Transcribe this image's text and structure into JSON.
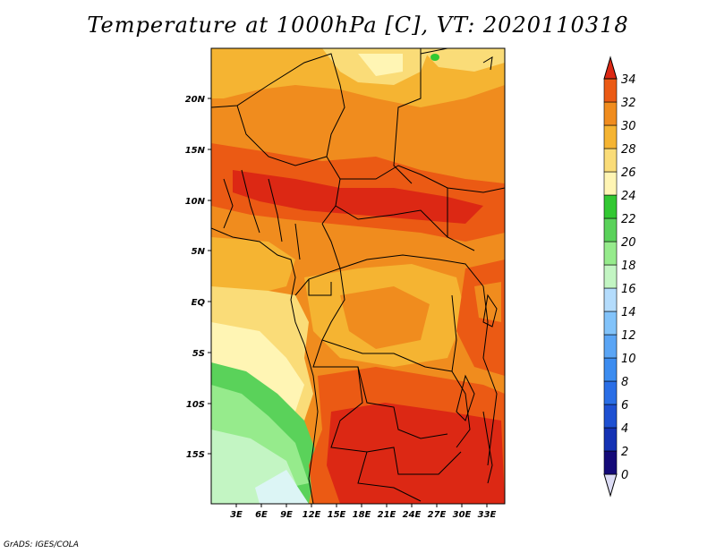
{
  "title": "Temperature at 1000hPa [C], VT: 2020110318",
  "credit": "GrADS: IGES/COLA",
  "map": {
    "lon_ticks": [
      "3E",
      "6E",
      "9E",
      "12E",
      "15E",
      "18E",
      "21E",
      "24E",
      "27E",
      "30E",
      "33E"
    ],
    "lat_ticks": [
      "20N",
      "15N",
      "10N",
      "5N",
      "EQ",
      "5S",
      "10S",
      "15S"
    ]
  },
  "colorbar": {
    "levels": [
      "0",
      "2",
      "4",
      "6",
      "8",
      "10",
      "12",
      "14",
      "16",
      "18",
      "20",
      "22",
      "24",
      "26",
      "28",
      "30",
      "32",
      "34"
    ],
    "colors": [
      "#140a78",
      "#1432b4",
      "#1e50d2",
      "#2a6ee6",
      "#3c8cf0",
      "#5aa5f5",
      "#82c3fa",
      "#b4dcfc",
      "#c3f5c3",
      "#96eb8c",
      "#5ad25a",
      "#32c832",
      "#fff5b4",
      "#fadc78",
      "#f5b432",
      "#f08c1e",
      "#eb5a14",
      "#dc2814"
    ]
  }
}
